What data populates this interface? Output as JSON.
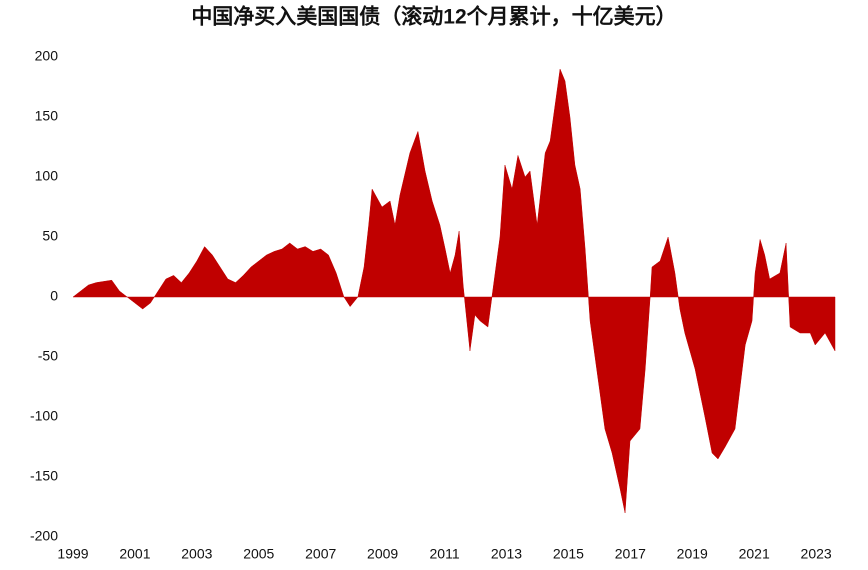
{
  "chart_data": {
    "type": "area",
    "title": "中国净买入美国国债（滚动12个月累计，十亿美元）",
    "color": "#c00000",
    "xlim": [
      1999,
      2023.61
    ],
    "xticks": [
      1999,
      2001,
      2003,
      2005,
      2007,
      2009,
      2011,
      2013,
      2015,
      2017,
      2019,
      2021,
      2023
    ],
    "ylim": [
      -200,
      200
    ],
    "yticks": [
      -200,
      -150,
      -100,
      -50,
      0,
      50,
      100,
      150,
      200
    ],
    "x": [
      1999,
      1999.25,
      1999.5,
      1999.75,
      2000,
      2000.25,
      2000.5,
      2000.75,
      2001,
      2001.25,
      2001.5,
      2001.75,
      2002,
      2002.25,
      2002.5,
      2002.75,
      2003,
      2003.25,
      2003.5,
      2003.75,
      2004,
      2004.25,
      2004.5,
      2004.75,
      2005,
      2005.25,
      2005.5,
      2005.75,
      2006,
      2006.25,
      2006.5,
      2006.75,
      2007,
      2007.25,
      2007.5,
      2007.75,
      2007.95,
      2008.2,
      2008.4,
      2008.55,
      2008.66,
      2008.98,
      2009.24,
      2009.4,
      2009.56,
      2009.88,
      2010.14,
      2010.37,
      2010.6,
      2010.85,
      2011.02,
      2011.18,
      2011.34,
      2011.47,
      2011.6,
      2011.82,
      2011.98,
      2012.15,
      2012.4,
      2012.53,
      2012.79,
      2012.95,
      2013.18,
      2013.37,
      2013.6,
      2013.76,
      2013.99,
      2014.25,
      2014.41,
      2014.57,
      2014.73,
      2014.89,
      2015.05,
      2015.21,
      2015.38,
      2015.54,
      2015.7,
      2016.02,
      2016.18,
      2016.41,
      2016.67,
      2016.83,
      2016.99,
      2017.31,
      2017.48,
      2017.64,
      2017.7,
      2017.96,
      2018.22,
      2018.44,
      2018.6,
      2018.76,
      2019.09,
      2019.41,
      2019.64,
      2019.83,
      2020.06,
      2020.38,
      2020.71,
      2020.93,
      2021.03,
      2021.19,
      2021.34,
      2021.5,
      2021.83,
      2022.03,
      2022.16,
      2022.48,
      2022.81,
      2022.97,
      2023.29,
      2023.61
    ],
    "values": [
      0,
      5,
      10,
      12,
      13,
      14,
      5,
      0,
      -5,
      -10,
      -5,
      5,
      15,
      18,
      12,
      20,
      30,
      42,
      35,
      25,
      15,
      12,
      18,
      25,
      30,
      35,
      38,
      40,
      45,
      40,
      42,
      38,
      40,
      35,
      20,
      0,
      -8,
      0,
      25,
      60,
      90,
      75,
      80,
      60,
      85,
      120,
      138,
      105,
      80,
      60,
      40,
      20,
      35,
      55,
      10,
      -45,
      -15,
      -20,
      -25,
      0,
      50,
      110,
      90,
      118,
      100,
      105,
      60,
      120,
      130,
      160,
      190,
      180,
      150,
      110,
      90,
      40,
      -20,
      -80,
      -110,
      -130,
      -160,
      -180,
      -120,
      -110,
      -60,
      0,
      25,
      30,
      50,
      20,
      -10,
      -30,
      -60,
      -100,
      -130,
      -135,
      -125,
      -110,
      -40,
      -20,
      20,
      48,
      35,
      15,
      20,
      45,
      -25,
      -30,
      -30,
      -40,
      -30,
      -45
    ]
  }
}
